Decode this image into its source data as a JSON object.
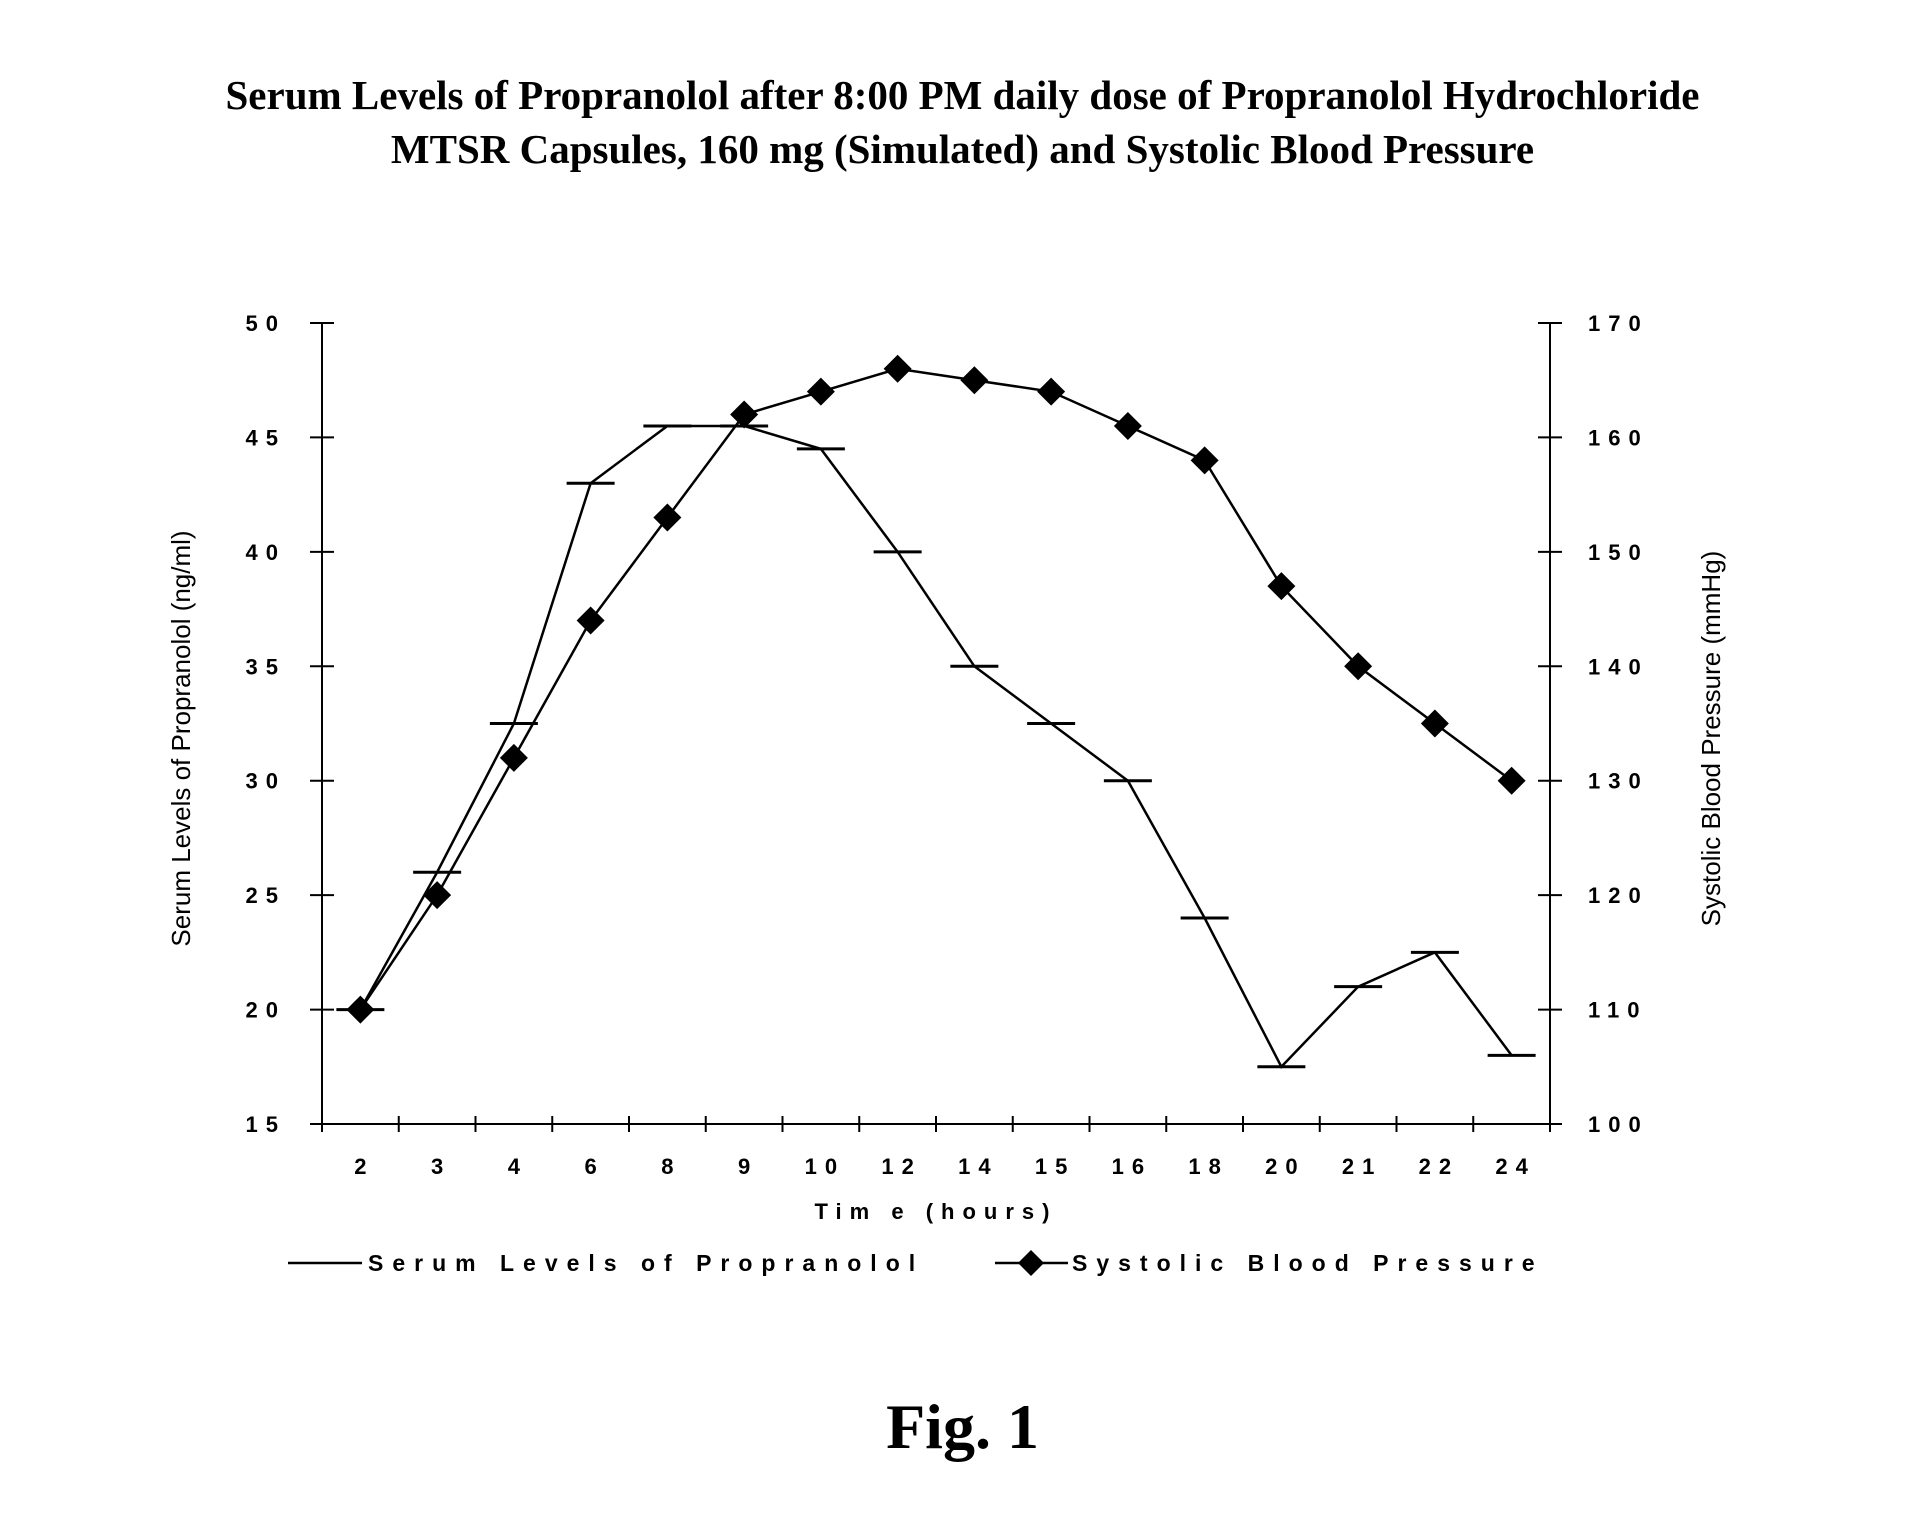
{
  "title_line1": "Serum Levels of Propranolol after 8:00 PM daily dose of Propranolol Hydrochloride",
  "title_line2": "MTSR Capsules, 160 mg (Simulated) and Systolic Blood Pressure",
  "figure_label": "Fig. 1",
  "chart_data": {
    "type": "line",
    "categories": [
      "2",
      "3",
      "4",
      "6",
      "8",
      "9",
      "10",
      "12",
      "14",
      "15",
      "16",
      "18",
      "20",
      "21",
      "22",
      "24"
    ],
    "xlabel": "Tim e (hours)",
    "y_left": {
      "label": "Serum Levels of Propranolol (ng/ml)",
      "ticks": [
        "50",
        "45",
        "40",
        "35",
        "30",
        "25",
        "20",
        "15"
      ],
      "range": [
        15,
        50
      ]
    },
    "y_right": {
      "label": "Systolic Blood Pressure (mmHg)",
      "ticks": [
        "170",
        "160",
        "150",
        "140",
        "130",
        "120",
        "110",
        "100"
      ],
      "range": [
        100,
        170
      ]
    },
    "series": [
      {
        "name": "Serum Levels of Propranolol",
        "axis": "left",
        "marker": "dash",
        "values": [
          20,
          26,
          32.5,
          43,
          45.5,
          45.5,
          44.5,
          40,
          35,
          32.5,
          30,
          24,
          17.5,
          21,
          22.5,
          18
        ]
      },
      {
        "name": "Systolic Blood Pressure",
        "axis": "right",
        "marker": "diamond",
        "values": [
          110,
          120,
          132,
          144,
          153,
          162,
          164,
          166,
          165,
          164,
          161,
          158,
          147,
          140,
          135,
          130
        ]
      }
    ],
    "legend_position": "bottom",
    "grid": false,
    "line_color": "#000000"
  }
}
